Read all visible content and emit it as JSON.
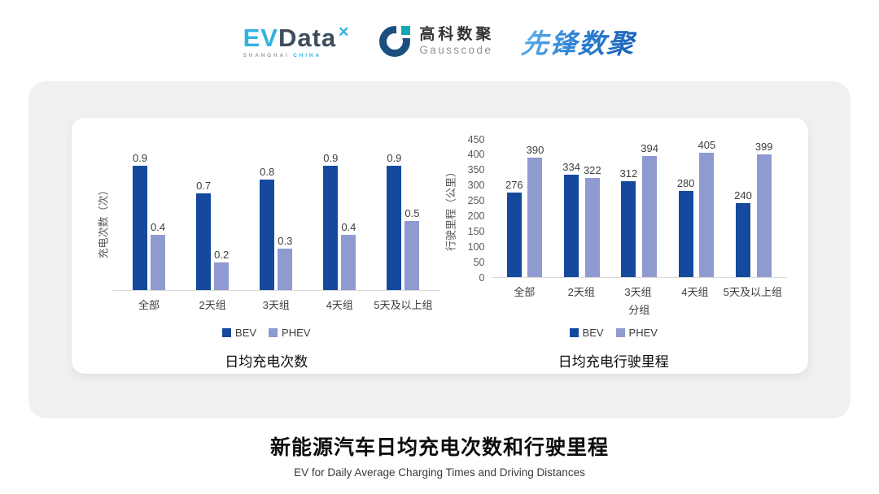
{
  "header": {
    "evdata": {
      "ev": "EV",
      "data": "Data",
      "sparkle": "✕",
      "sub_left": "SHANGHAI",
      "sub_right": "CHINA"
    },
    "gausscode": {
      "name_cn": "高科数聚",
      "name_en": "Gausscode"
    },
    "pioneer": {
      "name": "先锋数聚"
    }
  },
  "footer": {
    "title": "新能源汽车日均充电次数和行驶里程",
    "subtitle": "EV for Daily Average Charging Times and Driving Distances"
  },
  "colors": {
    "bev": "#15499e",
    "phev": "#8f9ad1",
    "axis_line": "#d9d9d9",
    "tick_text": "#595959",
    "panel_bg": "#f0f0f0"
  },
  "chart_data": [
    {
      "type": "bar",
      "title": "日均充电次数",
      "categories": [
        "全部",
        "2天组",
        "3天组",
        "4天组",
        "5天及以上组"
      ],
      "series": [
        {
          "name": "BEV",
          "values": [
            0.9,
            0.7,
            0.8,
            0.9,
            0.9
          ]
        },
        {
          "name": "PHEV",
          "values": [
            0.4,
            0.2,
            0.3,
            0.4,
            0.5
          ]
        }
      ],
      "ylabel": "充电次数（次）",
      "xlabel": "",
      "ylim": [
        0,
        1.0
      ],
      "yticks": [],
      "grid": false,
      "legend_position": "bottom",
      "value_labels": true
    },
    {
      "type": "bar",
      "title": "日均充电行驶里程",
      "categories": [
        "全部",
        "2天组",
        "3天组",
        "4天组",
        "5天及以上组"
      ],
      "series": [
        {
          "name": "BEV",
          "values": [
            276,
            334,
            312,
            280,
            240
          ]
        },
        {
          "name": "PHEV",
          "values": [
            390,
            322,
            394,
            405,
            399
          ]
        }
      ],
      "ylabel": "行驶里程（公里）",
      "xlabel": "分组",
      "ylim": [
        0,
        450
      ],
      "yticks": [
        0,
        50,
        100,
        150,
        200,
        250,
        300,
        350,
        400,
        450
      ],
      "grid": false,
      "legend_position": "bottom",
      "value_labels": true
    }
  ]
}
